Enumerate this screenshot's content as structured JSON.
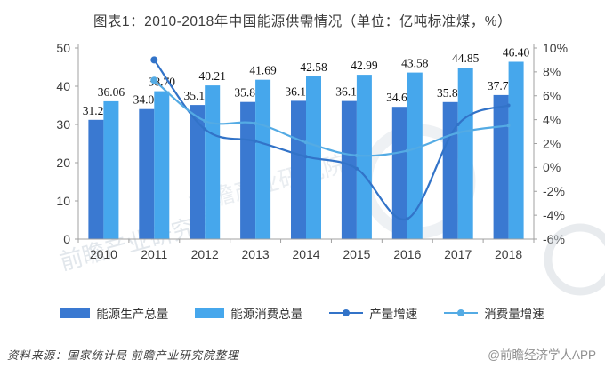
{
  "page": {
    "background": "#ffffff"
  },
  "chart_data": {
    "type": "combo-bar-line",
    "title": "图表1：2010-2018年中国能源供需情况（单位：亿吨标准煤，%）",
    "categories": [
      "2010",
      "2011",
      "2012",
      "2013",
      "2014",
      "2015",
      "2016",
      "2017",
      "2018"
    ],
    "series": [
      {
        "name": "能源生产总量",
        "type": "bar",
        "axis": "left",
        "color": "#3a79d1",
        "values": [
          31.21,
          34.02,
          35.1,
          35.88,
          36.19,
          36.15,
          34.6,
          35.85,
          37.7
        ],
        "labels": [
          "31.21",
          "34.02",
          "35.10",
          "35.88",
          "36.19",
          "36.15",
          "34.60",
          "35.85",
          "37.70"
        ]
      },
      {
        "name": "能源消费总量",
        "type": "bar",
        "axis": "left",
        "color": "#46a7ec",
        "values": [
          36.06,
          38.7,
          40.21,
          41.69,
          42.58,
          42.99,
          43.58,
          44.85,
          46.4
        ],
        "labels": [
          "36.06",
          "38.70",
          "40.21",
          "41.69",
          "42.58",
          "42.99",
          "43.58",
          "44.85",
          "46.40"
        ]
      },
      {
        "name": "产量增速",
        "type": "line",
        "axis": "right",
        "color": "#3273c8",
        "values": [
          null,
          9.0,
          3.2,
          2.2,
          0.9,
          -0.1,
          -4.3,
          3.6,
          5.2
        ]
      },
      {
        "name": "消费量增速",
        "type": "line",
        "axis": "right",
        "color": "#54abe4",
        "values": [
          null,
          7.3,
          3.9,
          3.7,
          2.1,
          1.0,
          1.4,
          2.9,
          3.5
        ]
      }
    ],
    "left_axis": {
      "min": 0,
      "max": 50,
      "ticks": [
        "0",
        "10",
        "20",
        "30",
        "40",
        "50"
      ]
    },
    "right_axis": {
      "min": -6,
      "max": 10,
      "ticks": [
        "-6%",
        "-4%",
        "-2%",
        "0%",
        "2%",
        "4%",
        "6%",
        "8%",
        "10%"
      ]
    },
    "legend_position": "bottom",
    "grid": false
  },
  "footer": {
    "source": "资料来源：国家统计局 前瞻产业研究院整理",
    "credit": "@前瞻经济学人APP"
  },
  "watermark": {
    "text": "前瞻产业研究院"
  }
}
